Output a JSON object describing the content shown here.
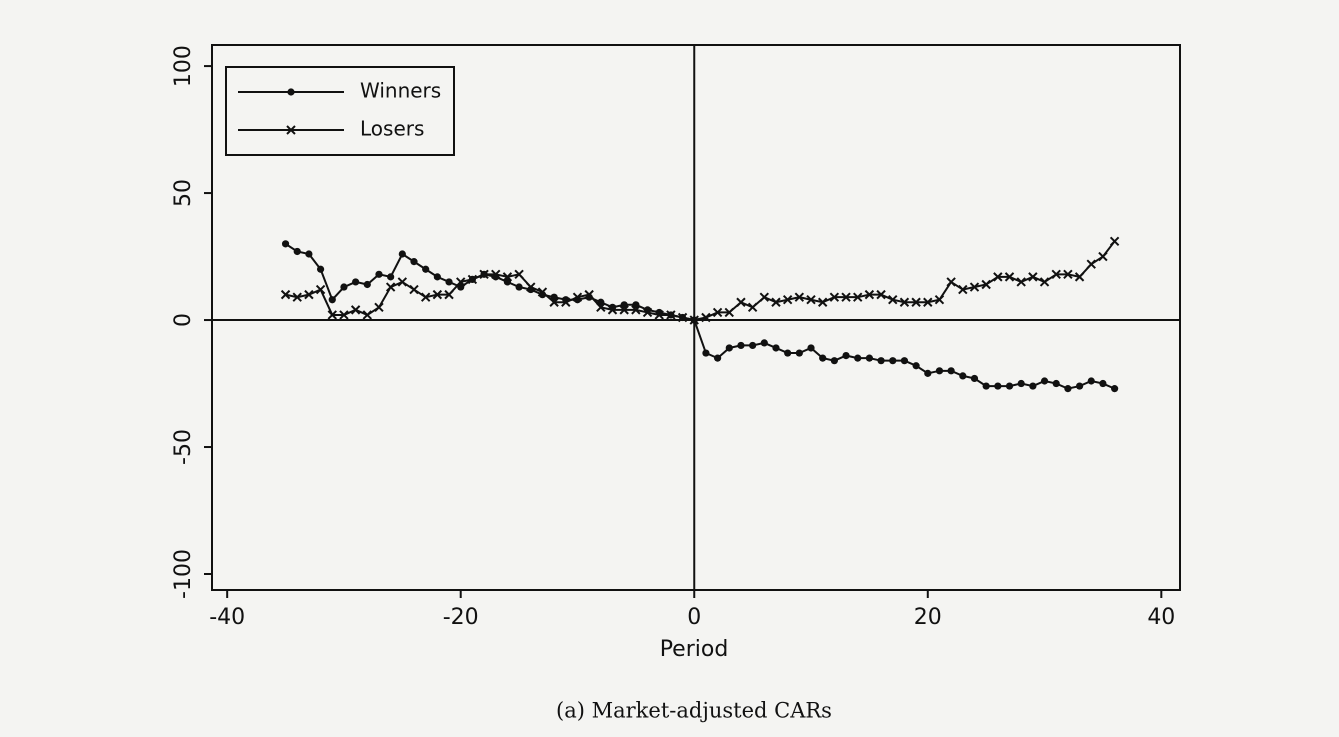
{
  "chart_data": {
    "type": "line",
    "caption": "(a) Market-adjusted CARs",
    "xlabel": "Period",
    "x": [
      -35,
      -34,
      -33,
      -32,
      -31,
      -30,
      -29,
      -28,
      -27,
      -26,
      -25,
      -24,
      -23,
      -22,
      -21,
      -20,
      -19,
      -18,
      -17,
      -16,
      -15,
      -14,
      -13,
      -12,
      -11,
      -10,
      -9,
      -8,
      -7,
      -6,
      -5,
      -4,
      -3,
      -2,
      -1,
      0,
      1,
      2,
      3,
      4,
      5,
      6,
      7,
      8,
      9,
      10,
      11,
      12,
      13,
      14,
      15,
      16,
      17,
      18,
      19,
      20,
      21,
      22,
      23,
      24,
      25,
      26,
      27,
      28,
      29,
      30,
      31,
      32,
      33,
      34,
      35,
      36
    ],
    "series": [
      {
        "name": "Winners",
        "color": "#111111",
        "marker": "circle",
        "values": [
          30,
          27,
          26,
          20,
          8,
          13,
          15,
          14,
          18,
          17,
          26,
          23,
          20,
          17,
          15,
          13,
          16,
          18,
          17,
          15,
          13,
          12,
          10,
          9,
          8,
          8,
          9,
          7,
          5,
          6,
          6,
          4,
          3,
          2,
          1,
          0,
          -13,
          -15,
          -11,
          -10,
          -10,
          -9,
          -11,
          -13,
          -13,
          -11,
          -15,
          -16,
          -14,
          -15,
          -15,
          -16,
          -16,
          -16,
          -18,
          -21,
          -20,
          -20,
          -22,
          -23,
          -26,
          -26,
          -26,
          -25,
          -26,
          -24,
          -25,
          -27,
          -26,
          -24,
          -25,
          -27
        ]
      },
      {
        "name": "Losers",
        "color": "#111111",
        "marker": "cross",
        "values": [
          10,
          9,
          10,
          12,
          2,
          2,
          4,
          2,
          5,
          13,
          15,
          12,
          9,
          10,
          10,
          15,
          16,
          18,
          18,
          17,
          18,
          13,
          11,
          7,
          7,
          9,
          10,
          5,
          4,
          4,
          4,
          3,
          2,
          2,
          1,
          0,
          1,
          3,
          3,
          7,
          5,
          9,
          7,
          8,
          9,
          8,
          7,
          9,
          9,
          9,
          10,
          10,
          8,
          7,
          7,
          7,
          8,
          15,
          12,
          13,
          14,
          17,
          17,
          15,
          17,
          15,
          18,
          18,
          17,
          22,
          25,
          31
        ]
      }
    ],
    "xlim": [
      -41.3,
      41.6
    ],
    "ylim": [
      -106.3,
      108.3
    ],
    "xticks": [
      -40,
      -20,
      0,
      20,
      40
    ],
    "yticks": [
      -100,
      -50,
      0,
      50,
      100
    ],
    "xline": 0,
    "yline": 0,
    "legend": "upper left"
  }
}
